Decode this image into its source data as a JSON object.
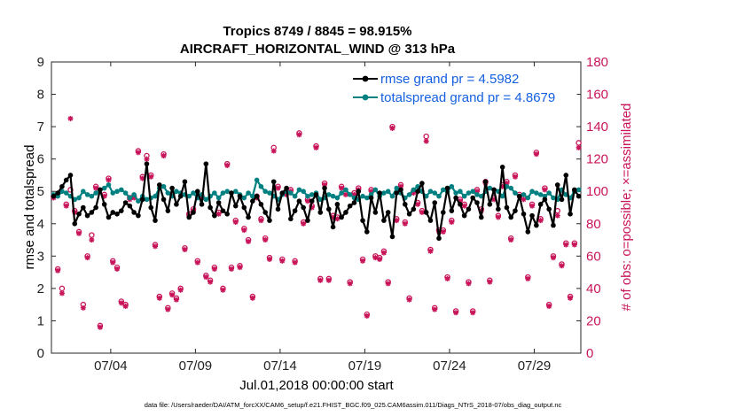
{
  "chart_data": {
    "type": "line",
    "title": "Tropics 8749 / 8845 = 98.915%",
    "subtitle": "AIRCRAFT_HORIZONTAL_WIND @ 313 hPa",
    "xlabel": "Jul.01,2018 00:00:00 start",
    "ylabel": "rmse and totalspread",
    "ylabel_right": "# of obs: o=possible; ×=assimilated",
    "footnote": "data file: /Users/raeder/DAI/ATM_forcXX/CAM6_setup/f.e21.FHIST_BGC.f09_025.CAM6assim.011/Diags_NTrS_2018-07/obs_diag_output.nc",
    "xlim": [
      0.5,
      31.75
    ],
    "ylim": [
      0,
      9
    ],
    "ylim_right": [
      0,
      180
    ],
    "xticks": [
      4,
      9,
      14,
      19,
      24,
      29
    ],
    "xtick_labels": [
      "07/04",
      "07/09",
      "07/14",
      "07/19",
      "07/24",
      "07/29"
    ],
    "yticks": [
      0,
      1,
      2,
      3,
      4,
      5,
      6,
      7,
      8,
      9
    ],
    "yticks_right": [
      0,
      20,
      40,
      60,
      80,
      100,
      120,
      140,
      160,
      180
    ],
    "legend": [
      {
        "label": "rmse grand pr = 4.5982",
        "color": "#000000"
      },
      {
        "label": "totalspread grand pr = 4.8679",
        "color": "#008080"
      }
    ],
    "colors": {
      "rmse": "#000000",
      "spread": "#008080",
      "obs": "#c8155a",
      "legend_text": "#1560e0"
    },
    "x": [
      0.625,
      0.875,
      1.125,
      1.375,
      1.625,
      1.875,
      2.125,
      2.375,
      2.625,
      2.875,
      3.125,
      3.375,
      3.625,
      3.875,
      4.125,
      4.375,
      4.625,
      4.875,
      5.125,
      5.375,
      5.625,
      5.875,
      6.125,
      6.375,
      6.625,
      6.875,
      7.125,
      7.375,
      7.625,
      7.875,
      8.125,
      8.375,
      8.625,
      8.875,
      9.125,
      9.375,
      9.625,
      9.875,
      10.125,
      10.375,
      10.625,
      10.875,
      11.125,
      11.375,
      11.625,
      11.875,
      12.125,
      12.375,
      12.625,
      12.875,
      13.125,
      13.375,
      13.625,
      13.875,
      14.125,
      14.375,
      14.625,
      14.875,
      15.125,
      15.375,
      15.625,
      15.875,
      16.125,
      16.375,
      16.625,
      16.875,
      17.125,
      17.375,
      17.625,
      17.875,
      18.125,
      18.375,
      18.625,
      18.875,
      19.125,
      19.375,
      19.625,
      19.875,
      20.125,
      20.375,
      20.625,
      20.875,
      21.125,
      21.375,
      21.625,
      21.875,
      22.125,
      22.375,
      22.625,
      22.875,
      23.125,
      23.375,
      23.625,
      23.875,
      24.125,
      24.375,
      24.625,
      24.875,
      25.125,
      25.375,
      25.625,
      25.875,
      26.125,
      26.375,
      26.625,
      26.875,
      27.125,
      27.375,
      27.625,
      27.875,
      28.125,
      28.375,
      28.625,
      28.875,
      29.125,
      29.375,
      29.625,
      29.875,
      30.125,
      30.375,
      30.625,
      30.875,
      31.125,
      31.375,
      31.625
    ],
    "series": [
      {
        "name": "rmse",
        "values": [
          4.85,
          4.95,
          5.15,
          5.35,
          5.5,
          4.0,
          4.3,
          4.5,
          4.25,
          4.35,
          4.5,
          5.05,
          4.6,
          4.2,
          4.35,
          4.3,
          4.4,
          4.65,
          4.55,
          4.35,
          4.25,
          4.75,
          5.85,
          4.5,
          4.1,
          5.2,
          4.75,
          4.4,
          5.1,
          4.6,
          4.85,
          5.3,
          4.2,
          4.35,
          5.0,
          4.6,
          5.85,
          4.5,
          4.25,
          4.65,
          4.4,
          4.3,
          4.95,
          4.55,
          4.85,
          4.5,
          4.2,
          4.7,
          4.85,
          4.6,
          4.35,
          4.1,
          5.3,
          4.45,
          4.95,
          5.1,
          4.15,
          4.4,
          4.7,
          4.5,
          4.1,
          4.7,
          4.9,
          4.35,
          5.1,
          4.45,
          3.9,
          4.6,
          4.2,
          4.35,
          4.55,
          4.65,
          5.0,
          4.1,
          3.75,
          4.8,
          4.35,
          4.95,
          4.1,
          4.35,
          3.6,
          4.95,
          5.05,
          4.6,
          4.3,
          4.45,
          5.0,
          5.25,
          4.35,
          4.1,
          4.65,
          3.55,
          4.35,
          5.1,
          4.4,
          4.8,
          4.6,
          4.25,
          4.45,
          4.8,
          4.65,
          4.2,
          5.3,
          4.6,
          5.05,
          4.45,
          5.75,
          4.5,
          4.2,
          4.4,
          4.85,
          4.3,
          3.75,
          4.25,
          3.95,
          4.6,
          4.75,
          4.45,
          3.95,
          5.2,
          4.75,
          5.5,
          4.3,
          5.05,
          4.85
        ]
      },
      {
        "name": "totalspread",
        "values": [
          4.9,
          4.85,
          5.0,
          4.95,
          4.85,
          4.75,
          4.8,
          5.0,
          4.9,
          4.85,
          4.95,
          5.05,
          5.1,
          5.2,
          4.95,
          5.0,
          5.05,
          4.95,
          4.8,
          4.9,
          4.7,
          4.85,
          4.75,
          4.8,
          4.85,
          5.1,
          5.15,
          4.95,
          4.85,
          5.0,
          4.95,
          4.9,
          4.85,
          4.95,
          4.8,
          4.9,
          4.75,
          4.85,
          4.95,
          4.8,
          4.95,
          5.0,
          4.95,
          5.0,
          4.9,
          4.8,
          4.95,
          4.85,
          5.35,
          5.15,
          5.0,
          4.95,
          4.85,
          4.75,
          4.9,
          5.0,
          4.95,
          4.85,
          5.05,
          5.0,
          4.85,
          4.9,
          4.95,
          4.75,
          4.8,
          4.9,
          4.85,
          4.8,
          4.95,
          5.05,
          4.9,
          4.8,
          4.75,
          4.85,
          4.8,
          4.9,
          5.05,
          4.85,
          4.95,
          5.0,
          4.85,
          5.1,
          4.95,
          4.8,
          4.9,
          5.05,
          5.15,
          5.0,
          4.85,
          5.0,
          4.95,
          4.85,
          5.05,
          5.0,
          5.15,
          4.95,
          5.0,
          4.85,
          4.95,
          5.0,
          4.9,
          4.85,
          5.0,
          5.1,
          5.05,
          5.0,
          4.85,
          5.15,
          5.1,
          4.95,
          4.85,
          4.9,
          4.8,
          5.0,
          4.95,
          4.9,
          4.85,
          4.95,
          4.8,
          4.75,
          5.05,
          4.9,
          4.8,
          5.0,
          5.05
        ]
      },
      {
        "name": "obs_possible",
        "values": [
          97,
          52,
          40,
          92,
          101,
          88,
          75,
          30,
          60,
          73,
          103,
          17,
          98,
          108,
          57,
          53,
          32,
          30,
          96,
          97,
          125,
          109,
          122,
          110,
          67,
          35,
          123,
          28,
          37,
          34,
          40,
          65,
          86,
          89,
          57,
          97,
          48,
          45,
          53,
          87,
          40,
          117,
          53,
          82,
          54,
          77,
          70,
          35,
          97,
          83,
          71,
          59,
          127,
          103,
          58,
          99,
          101,
          57,
          136,
          81,
          95,
          91,
          128,
          46,
          105,
          46,
          85,
          84,
          103,
          99,
          44,
          99,
          102,
          58,
          24,
          101,
          60,
          59,
          63,
          44,
          140,
          83,
          104,
          81,
          34,
          100,
          93,
          88,
          134,
          64,
          28,
          76,
          76,
          47,
          82,
          26,
          95,
          92,
          44,
          26,
          101,
          89,
          106,
          45,
          96,
          85,
          104,
          106,
          71,
          110,
          98,
          96,
          47,
          92,
          124,
          83,
          102,
          30,
          60,
          88,
          55,
          68,
          35,
          68,
          130
        ]
      },
      {
        "name": "obs_assimilated",
        "values": [
          96,
          51,
          37,
          91,
          145,
          87,
          74,
          28,
          59,
          70,
          102,
          16,
          97,
          107,
          56,
          52,
          31,
          29,
          95,
          96,
          124,
          108,
          120,
          109,
          66,
          34,
          122,
          27,
          36,
          33,
          39,
          64,
          85,
          88,
          56,
          96,
          47,
          44,
          52,
          86,
          39,
          116,
          52,
          81,
          53,
          76,
          69,
          34,
          96,
          82,
          70,
          58,
          125,
          102,
          57,
          98,
          100,
          56,
          135,
          80,
          94,
          90,
          127,
          45,
          104,
          45,
          84,
          83,
          102,
          98,
          43,
          98,
          101,
          57,
          23,
          100,
          59,
          58,
          62,
          43,
          139,
          82,
          103,
          80,
          33,
          99,
          92,
          87,
          131,
          63,
          27,
          75,
          75,
          46,
          81,
          25,
          94,
          91,
          43,
          25,
          100,
          88,
          105,
          44,
          95,
          84,
          103,
          105,
          70,
          109,
          97,
          95,
          46,
          91,
          123,
          82,
          101,
          29,
          59,
          85,
          54,
          67,
          34,
          67,
          127
        ]
      }
    ]
  }
}
